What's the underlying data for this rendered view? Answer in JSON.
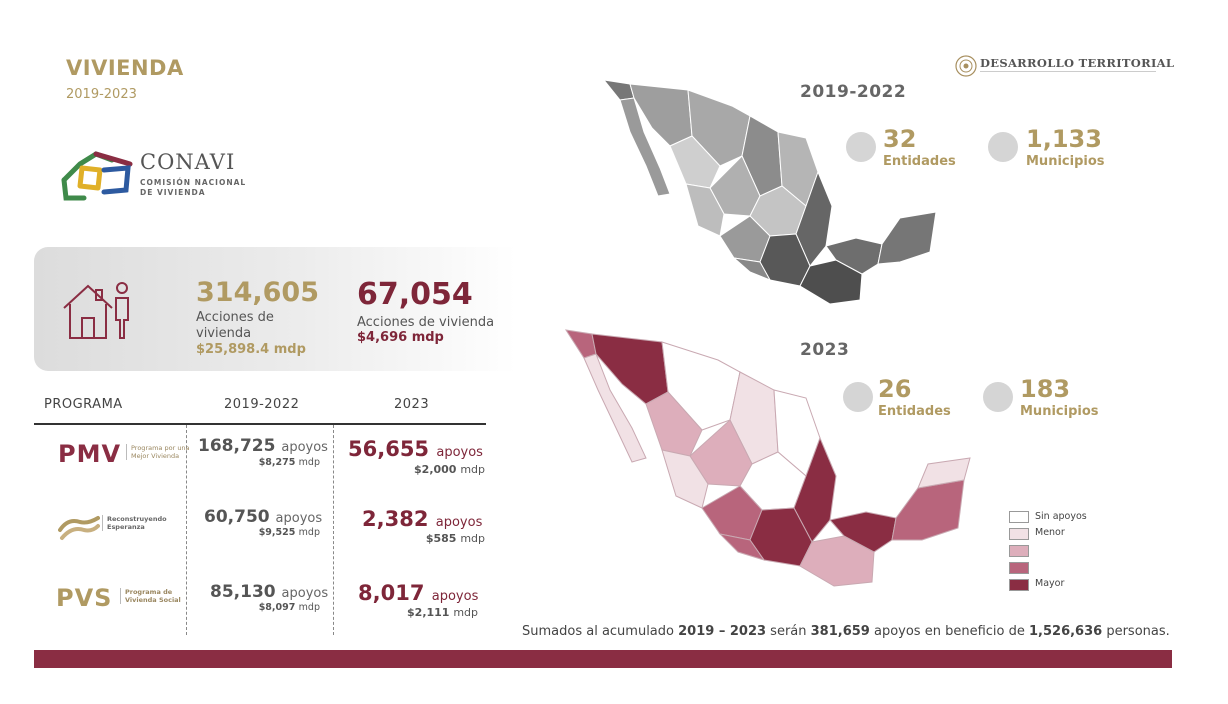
{
  "header": {
    "title": "VIVIENDA",
    "years": "2019-2023"
  },
  "brand": {
    "name": "DESARROLLO TERRITORIAL",
    "icon": "seal-icon"
  },
  "conavi": {
    "name": "CONAVI",
    "subtitle": "COMISIÓN NACIONAL DE VIVIENDA"
  },
  "summary": {
    "period1": {
      "value": "314,605",
      "label": "Acciones de vivienda",
      "amount": "$25,898.4 mdp"
    },
    "period2": {
      "value": "67,054",
      "label": "Acciones de vivienda",
      "amount": "$4,696 mdp"
    }
  },
  "table": {
    "headers": [
      "PROGRAMA",
      "2019-2022",
      "2023"
    ],
    "unit": "apoyos",
    "mdp": "mdp",
    "rows": [
      {
        "program": "PMV",
        "program_desc": "Programa por una Mejor Vivienda",
        "v1": "168,725",
        "m1": "$8,275",
        "v2": "56,655",
        "m2": "$2,000"
      },
      {
        "program": "",
        "program_desc": "Reconstruyendo Esperanza",
        "v1": "60,750",
        "m1": "$9,525",
        "v2": "2,382",
        "m2": "$585"
      },
      {
        "program": "PVS",
        "program_desc": "Programa de Vivienda Social",
        "v1": "85,130",
        "m1": "$8,097",
        "v2": "8,017",
        "m2": "$2,111"
      }
    ]
  },
  "maps": {
    "first": {
      "title": "2019-2022",
      "entidades": "32",
      "entidades_label": "Entidades",
      "municipios": "1,133",
      "municipios_label": "Municipios"
    },
    "second": {
      "title": "2023",
      "entidades": "26",
      "entidades_label": "Entidades",
      "municipios": "183",
      "municipios_label": "Municipios"
    }
  },
  "legend": [
    {
      "label": "Sin apoyos",
      "color": "#ffffff"
    },
    {
      "label": "Menor",
      "color": "#f1e1e5"
    },
    {
      "label": "",
      "color": "#ddaebb"
    },
    {
      "label": "",
      "color": "#b8657c"
    },
    {
      "label": "Mayor",
      "color": "#8a2d43"
    }
  ],
  "footnote": {
    "p1": "Sumados al acumulado ",
    "years": "2019 – 2023",
    "p2": " serán ",
    "total": "381,659",
    "p3": " apoyos en beneficio de ",
    "people": "1,526,636",
    "p4": " personas."
  },
  "colors": {
    "gold": "#b09a62",
    "wine": "#7e2639",
    "bar": "#8a2d43"
  }
}
